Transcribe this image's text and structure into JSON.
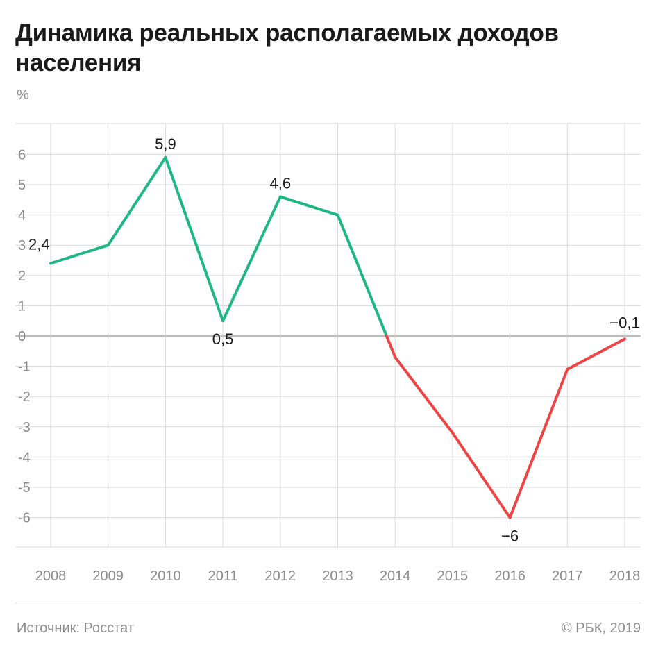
{
  "title": "Динамика реальных располагаемых доходов населения",
  "unit": "%",
  "footer": {
    "source": "Источник: Росстат",
    "copyright": "© РБК, 2019"
  },
  "colors": {
    "positive": "#1fb784",
    "negative": "#ef4444",
    "grid": "#d9d9d9",
    "zero_line": "#a6a6a6",
    "tick_text": "#8c8c8c",
    "label_text": "#1a1a1a"
  },
  "chart_data": {
    "type": "line",
    "title": "Динамика реальных располагаемых доходов населения",
    "ylabel": "%",
    "xlabel": "",
    "x": [
      "2008",
      "2009",
      "2010",
      "2011",
      "2012",
      "2013",
      "2014",
      "2015",
      "2016",
      "2017",
      "2018"
    ],
    "series": [
      {
        "values": [
          2.4,
          3.0,
          5.9,
          0.5,
          4.6,
          4.0,
          -0.7,
          -3.2,
          -6.0,
          -1.1,
          -0.1
        ]
      }
    ],
    "data_labels": [
      {
        "index": 0,
        "text": "2,4"
      },
      {
        "index": 2,
        "text": "5,9"
      },
      {
        "index": 3,
        "text": "0,5"
      },
      {
        "index": 4,
        "text": "4,6"
      },
      {
        "index": 8,
        "text": "−6"
      },
      {
        "index": 10,
        "text": "−0,1"
      }
    ],
    "yticks": [
      6,
      5,
      4,
      3,
      2,
      1,
      0,
      -1,
      -2,
      -3,
      -4,
      -5,
      -6
    ],
    "ylim": [
      -7,
      7
    ],
    "grid": true,
    "legend": "none",
    "color_rule": "green above zero, red below zero"
  }
}
